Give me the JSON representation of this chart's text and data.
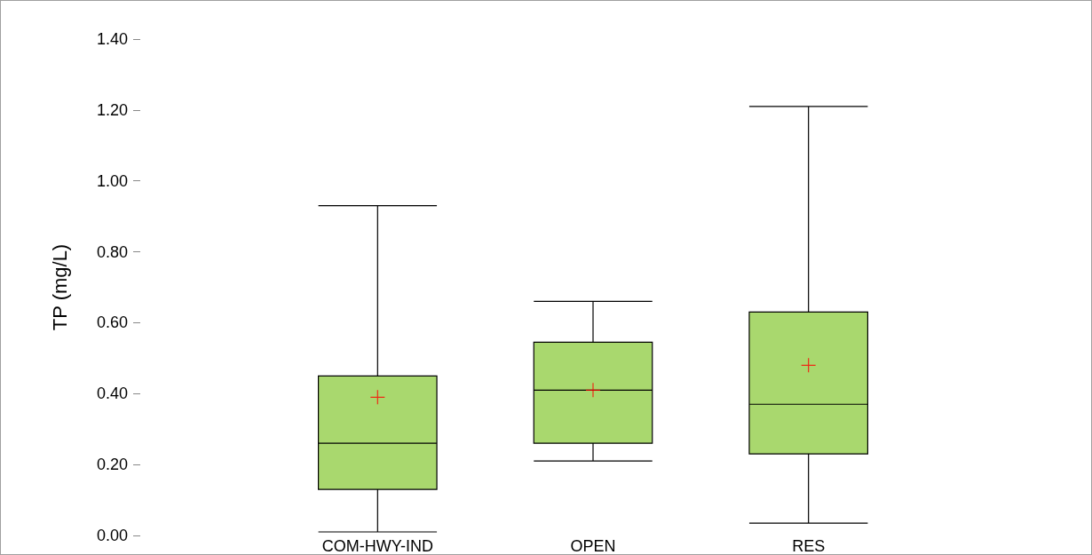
{
  "chart_data": {
    "type": "box",
    "ylabel": "TP (mg/L)",
    "categories": [
      "COM-HWY-IND",
      "OPEN",
      "RES"
    ],
    "boxes": [
      {
        "low": 0.01,
        "q1": 0.13,
        "median": 0.26,
        "q3": 0.45,
        "high": 0.93,
        "mean": 0.39
      },
      {
        "low": 0.21,
        "q1": 0.26,
        "median": 0.41,
        "q3": 0.545,
        "high": 0.66,
        "mean": 0.41
      },
      {
        "low": 0.035,
        "q1": 0.23,
        "median": 0.37,
        "q3": 0.63,
        "high": 1.21,
        "mean": 0.48
      }
    ],
    "color": "#a9d86e",
    "ylim": [
      0,
      1.4
    ],
    "yticks": [
      {
        "value": 0,
        "label": "0.00"
      },
      {
        "value": 0.2,
        "label": "0.20"
      },
      {
        "value": 0.4,
        "label": "0.40"
      },
      {
        "value": 0.6,
        "label": "0.60"
      },
      {
        "value": 0.8,
        "label": "0.80"
      },
      {
        "value": 1,
        "label": "1.00"
      },
      {
        "value": 1.2,
        "label": "1.20"
      },
      {
        "value": 1.4,
        "label": "1.40"
      }
    ],
    "grid": false
  }
}
